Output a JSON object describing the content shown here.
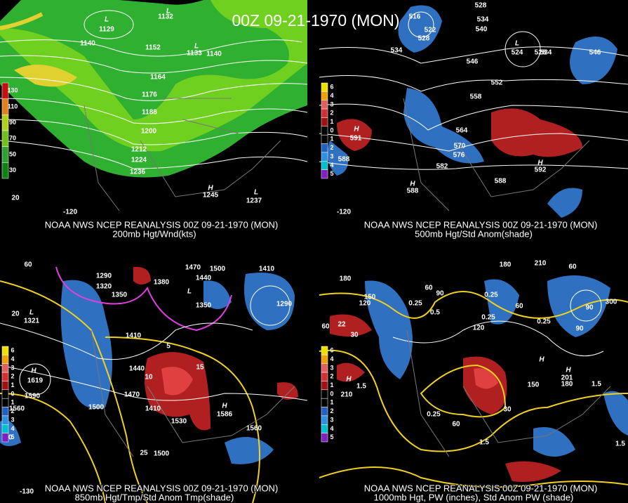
{
  "title": "00Z 09-21-1970 (MON)",
  "panels": [
    {
      "caption": "NOAA NWS NCEP REANALYSIS 00Z 09-21-1970 (MON)",
      "subtitle": "200mb Hgt/Wnd(kts)",
      "legend": [
        "130",
        "110",
        "90",
        "70",
        "50",
        "30"
      ],
      "labels": [
        "L",
        "1129",
        "L",
        "1132",
        "1140",
        "1152",
        "L",
        "1133",
        "1140",
        "1164",
        "1176",
        "1188",
        "1200",
        "1212",
        "1224",
        "1236",
        "H",
        "1245",
        "L",
        "1237",
        "-120",
        "20"
      ]
    },
    {
      "caption": "NOAA NWS NCEP REANALYSIS 00Z 09-21-1970 (MON)",
      "subtitle": "500mb Hgt/Std Anom(shade)",
      "legend": [
        "6",
        "4",
        "3",
        "2",
        "1",
        "0",
        "1",
        "2",
        "3",
        "4",
        "5"
      ],
      "labels": [
        "516",
        "522",
        "528",
        "534",
        "528",
        "534",
        "540",
        "L",
        "524",
        "528",
        "534",
        "546",
        "546",
        "552",
        "558",
        "564",
        "570",
        "576",
        "582",
        "H",
        "591",
        "588",
        "588",
        "H",
        "592",
        "H",
        "588",
        "-120"
      ]
    },
    {
      "caption": "NOAA NWS NCEP REANALYSIS 00Z 09-21-1970 (MON)",
      "subtitle": "850mb Hgt/Tmp/Std Anom Tmp(shade)",
      "legend": [
        "6",
        "4",
        "3",
        "2",
        "1",
        "0",
        "1",
        "2",
        "3",
        "4",
        "5"
      ],
      "labels": [
        "1290",
        "1320",
        "1350",
        "1380",
        "1470",
        "1500",
        "1410",
        "1440",
        "L",
        "1350",
        "1290",
        "L",
        "1321",
        "1410",
        "1440",
        "1470",
        "1410",
        "1500",
        "1530",
        "1500",
        "1560",
        "H",
        "1619",
        "1590",
        "1560",
        "H",
        "1586",
        "15",
        "10",
        "5",
        "25",
        "10",
        "20",
        "60",
        "-130"
      ]
    },
    {
      "caption": "NOAA NWS NCEP REANALYSIS 00Z 09-21-1970 (MON)",
      "subtitle": "1000mb Hgt, PW (inches), Std Anom PW (shade)",
      "legend": [
        "6",
        "4",
        "3",
        "2",
        "1",
        "0",
        "1",
        "2",
        "3",
        "4",
        "5"
      ],
      "labels": [
        "180",
        "150",
        "120",
        "60",
        "90",
        "0.25",
        "0.5",
        "0.25",
        "0.25",
        "180",
        "210",
        "60",
        "90",
        "60",
        "0.25",
        "90",
        "H",
        "201",
        "180",
        "1.5",
        "H",
        "150",
        "120",
        "60",
        "0.25",
        "1.5",
        "1.5",
        "30",
        "H",
        "210",
        "60",
        "22",
        "30",
        "1.5",
        "300"
      ]
    }
  ]
}
